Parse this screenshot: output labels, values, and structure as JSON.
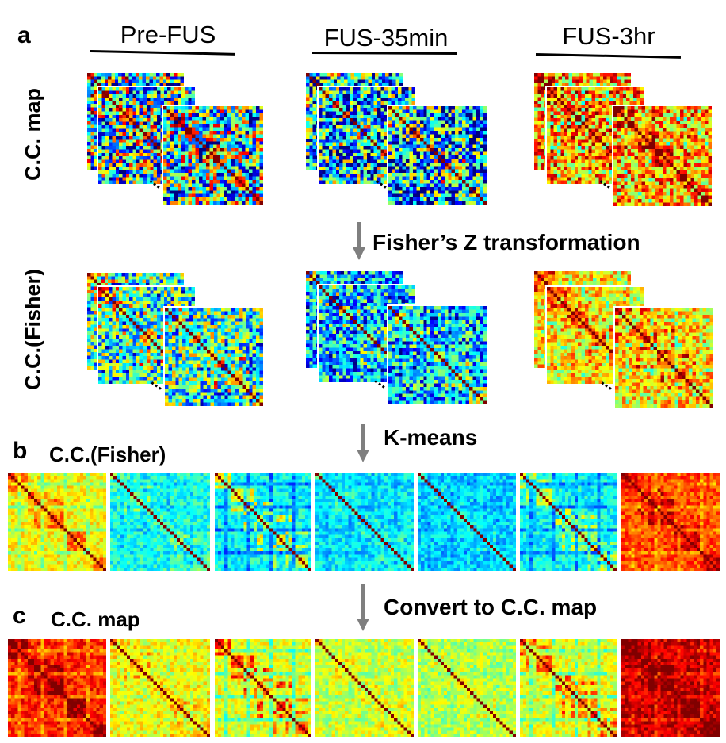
{
  "panel_a": {
    "letter": "a",
    "columns": [
      "Pre-FUS",
      "FUS-35min",
      "FUS-3hr"
    ],
    "row_labels": [
      "C.C. map",
      "C.C.(Fisher)"
    ],
    "step_fisher": "Fisher’s Z transformation"
  },
  "panel_b": {
    "letter": "b",
    "step": "K-means",
    "title": "C.C.(Fisher)"
  },
  "panel_c": {
    "letter": "c",
    "step": "Convert to C.C. map",
    "title": "C.C. map"
  },
  "colors": {
    "arrow": "#7f7f7f",
    "text": "#000000",
    "colormap": "jet"
  },
  "icons": [
    "down-arrow-icon",
    "ellipsis-icon"
  ]
}
